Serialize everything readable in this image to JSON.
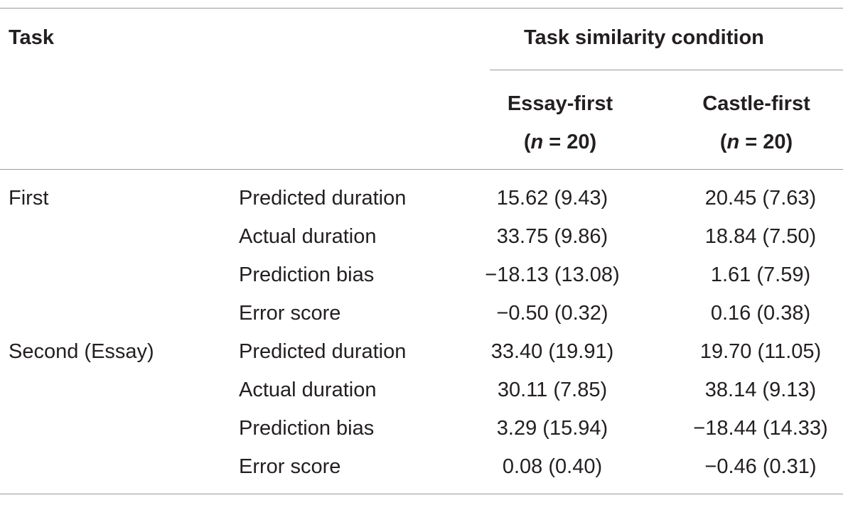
{
  "header": {
    "task": "Task",
    "condition": "Task similarity condition",
    "columns": [
      {
        "label": "Essay-first",
        "n_prefix": "(",
        "n_var": "n",
        "n_suffix": " = 20)"
      },
      {
        "label": "Castle-first",
        "n_prefix": "(",
        "n_var": "n",
        "n_suffix": " = 20)"
      }
    ]
  },
  "rows": [
    {
      "task": "First",
      "measure": "Predicted duration",
      "essay_first": "15.62 (9.43)",
      "castle_first": "20.45 (7.63)"
    },
    {
      "task": "",
      "measure": "Actual duration",
      "essay_first": "33.75 (9.86)",
      "castle_first": "18.84 (7.50)"
    },
    {
      "task": "",
      "measure": "Prediction bias",
      "essay_first": "−18.13 (13.08)",
      "castle_first": "1.61 (7.59)"
    },
    {
      "task": "",
      "measure": "Error score",
      "essay_first": "−0.50 (0.32)",
      "castle_first": "0.16 (0.38)"
    },
    {
      "task": "Second (Essay)",
      "measure": "Predicted duration",
      "essay_first": "33.40 (19.91)",
      "castle_first": "19.70 (11.05)"
    },
    {
      "task": "",
      "measure": "Actual duration",
      "essay_first": "30.11 (7.85)",
      "castle_first": "38.14 (9.13)"
    },
    {
      "task": "",
      "measure": "Prediction bias",
      "essay_first": "3.29 (15.94)",
      "castle_first": "−18.44 (14.33)"
    },
    {
      "task": "",
      "measure": "Error score",
      "essay_first": "0.08 (0.40)",
      "castle_first": "−0.46 (0.31)"
    }
  ]
}
